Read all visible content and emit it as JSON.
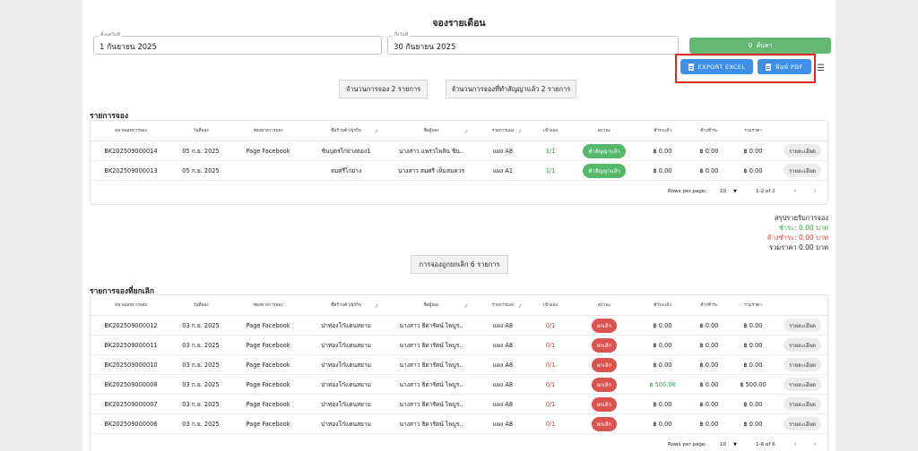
{
  "page": {
    "title": "จองรายเดือน"
  },
  "filters": {
    "start_label": "ตั้งแต่วันที่",
    "start_value": "1 กันยายน 2025",
    "end_label": "ถึงวันที่",
    "end_value": "30 กันยายน 2025",
    "search_label": "ค้นหา"
  },
  "export": {
    "excel_label": "EXPORT EXCEL",
    "pdf_label": "พิมพ์ PDF"
  },
  "counts": {
    "bookings": "จำนวนการจอง 2 รายการ",
    "contracted": "จำนวนการจองที่ทำสัญญาแล้ว 2 รายการ",
    "cancelled": "การจองถูกยกเลิก 6 รายการ"
  },
  "columns": [
    "หมายเลขการจอง",
    "วันที่จอง",
    "ช่องทางการจอง",
    "ชื่อร้านค้า/ธุรกิจ",
    "ชื่อผู้จอง",
    "รายการแผง",
    "เข้าแผง",
    "สถานะ",
    "ชำระแล้ว",
    "ค้างชำระ",
    "รวมราคา"
  ],
  "bookings": {
    "title": "รายการจอง",
    "rows": [
      {
        "id": "BK202509000014",
        "date": "05 ก.ย. 2025",
        "channel": "Page Facebook",
        "shop": "ชินบุตรไก่ย่างตอง1",
        "name": "นางสาว แพรวไพลิน ชิน..",
        "stall": "แผง A8",
        "entry": "1/1",
        "status": "ทำสัญญาแล้ว",
        "paid": "฿ 0.00",
        "due": "฿ 0.00",
        "total": "฿ 0.00",
        "action": "รายละเอียด"
      },
      {
        "id": "BK202509000013",
        "date": "05 ก.ย. 2025",
        "channel": "",
        "shop": "สมศรีไก่ย่าง",
        "name": "นางสาว สมศรี เห็มสมควร",
        "stall": "แผง A1",
        "entry": "1/1",
        "status": "ทำสัญญาแล้ว",
        "paid": "฿ 0.00",
        "due": "฿ 0.00",
        "total": "฿ 0.00",
        "action": "รายละเอียด"
      }
    ],
    "rows_per_page_label": "Rows per page:",
    "rows_per_page": "10",
    "range": "1-2 of 2"
  },
  "summary": {
    "title": "สรุปรายรับการจอง",
    "paid": "ชำระ: 0.00 บาท",
    "due": "ค้างชำระ: 0.00 บาท",
    "total": "รวมราคา 0.00 บาท"
  },
  "cancelled": {
    "title": "รายการจองที่ยกเลิก",
    "rows": [
      {
        "id": "BK202509000012",
        "date": "03 ก.ย. 2025",
        "channel": "Page Facebook",
        "shop": "ปาท่องโก๋แดนสยาม",
        "name": "นางสาว ธิดารัตน์ ไพบูร..",
        "stall": "แผง A8",
        "entry": "0/1",
        "status": "ยกเลิก",
        "paid": "฿ 0.00",
        "due": "฿ 0.00",
        "total": "฿ 0.00",
        "action": "รายละเอียด"
      },
      {
        "id": "BK202509000011",
        "date": "03 ก.ย. 2025",
        "channel": "Page Facebook",
        "shop": "ปาท่องโก๋แดนสยาม",
        "name": "นางสาว ธิดารัตน์ ไพบูร..",
        "stall": "แผง A8",
        "entry": "0/1",
        "status": "ยกเลิก",
        "paid": "฿ 0.00",
        "due": "฿ 0.00",
        "total": "฿ 0.00",
        "action": "รายละเอียด"
      },
      {
        "id": "BK202509000010",
        "date": "03 ก.ย. 2025",
        "channel": "Page Facebook",
        "shop": "ปาท่องโก๋แดนสยาม",
        "name": "นางสาว ธิดารัตน์ ไพบูร..",
        "stall": "แผง A8",
        "entry": "0/1",
        "status": "ยกเลิก",
        "paid": "฿ 0.00",
        "due": "฿ 0.00",
        "total": "฿ 0.00",
        "action": "รายละเอียด"
      },
      {
        "id": "BK202509000008",
        "date": "03 ก.ย. 2025",
        "channel": "Page Facebook",
        "shop": "ปาท่องโก๋แดนสยาม",
        "name": "นางสาว ธิดารัตน์ ไพบูร..",
        "stall": "แผง A8",
        "entry": "0/1",
        "status": "ยกเลิก",
        "paid": "฿ 500.00",
        "due": "฿ 0.00",
        "total": "฿ 500.00",
        "action": "รายละเอียด"
      },
      {
        "id": "BK202509000007",
        "date": "03 ก.ย. 2025",
        "channel": "Page Facebook",
        "shop": "ปาท่องโก๋แดนสยาม",
        "name": "นางสาว ธิดารัตน์ ไพบูร..",
        "stall": "แผง A8",
        "entry": "0/1",
        "status": "ยกเลิก",
        "paid": "฿ 0.00",
        "due": "฿ 0.00",
        "total": "฿ 0.00",
        "action": "รายละเอียด"
      },
      {
        "id": "BK202509000006",
        "date": "03 ก.ย. 2025",
        "channel": "Page Facebook",
        "shop": "ปาท่องโก๋แดนสยาม",
        "name": "นางสาว ธิดารัตน์ ไพบูร..",
        "stall": "แผง A8",
        "entry": "0/1",
        "status": "ยกเลิก",
        "paid": "฿ 0.00",
        "due": "฿ 0.00",
        "total": "฿ 0.00",
        "action": "รายละเอียด"
      }
    ],
    "rows_per_page_label": "Rows per page:",
    "rows_per_page": "10",
    "range": "1-6 of 6"
  },
  "colors": {
    "search": "#64b873",
    "export": "#3d8fe8",
    "highlight": "#e02a21",
    "contracted": "#55b86a",
    "cancelled": "#d9534f"
  },
  "icons": {
    "search": "search-icon",
    "excel": "document-icon",
    "pdf": "document-icon",
    "settings": "table-settings-icon",
    "prev": "chevron-left-icon",
    "next": "chevron-right-icon",
    "dropdown": "dropdown-arrow-icon",
    "resize": "column-resize-icon"
  }
}
